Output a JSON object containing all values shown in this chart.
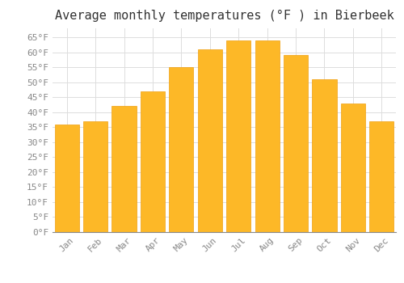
{
  "title": "Average monthly temperatures (°F ) in Bierbeek",
  "months": [
    "Jan",
    "Feb",
    "Mar",
    "Apr",
    "May",
    "Jun",
    "Jul",
    "Aug",
    "Sep",
    "Oct",
    "Nov",
    "Dec"
  ],
  "values": [
    36,
    37,
    42,
    47,
    55,
    61,
    64,
    64,
    59,
    51,
    43,
    37
  ],
  "bar_color": "#FDB827",
  "bar_edge_color": "#F0A010",
  "background_color": "#FFFFFF",
  "grid_color": "#DDDDDD",
  "ylim": [
    0,
    68
  ],
  "yticks": [
    0,
    5,
    10,
    15,
    20,
    25,
    30,
    35,
    40,
    45,
    50,
    55,
    60,
    65
  ],
  "title_fontsize": 11,
  "tick_fontsize": 8,
  "font_family": "monospace"
}
